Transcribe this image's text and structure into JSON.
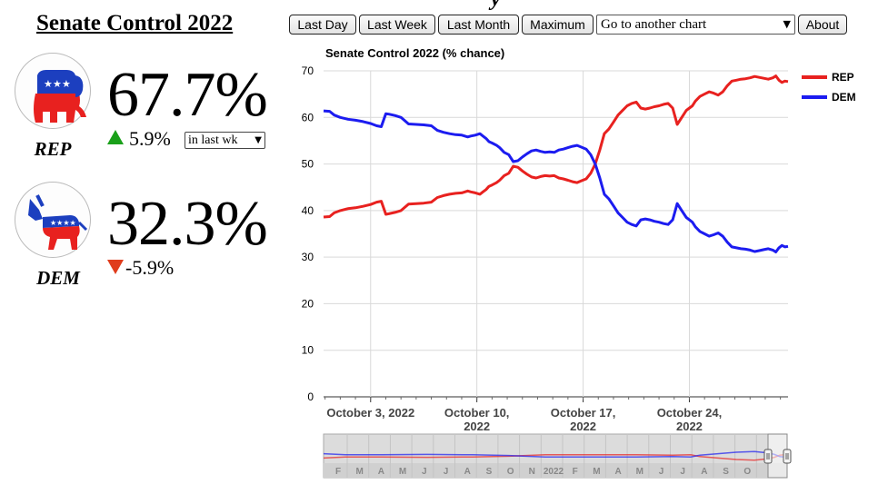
{
  "page": {
    "title": "Senate Control 2022",
    "top_fragment": "y"
  },
  "toolbar": {
    "last_day": "Last Day",
    "last_week": "Last Week",
    "last_month": "Last Month",
    "maximum": "Maximum",
    "select_value": "Go to another chart",
    "about": "About"
  },
  "rep": {
    "label": "REP",
    "percent": "67.7%",
    "change": "5.9%",
    "color": "#e8211f"
  },
  "dem": {
    "label": "DEM",
    "percent": "32.3%",
    "change": "-5.9%",
    "color": "#1c1cf0"
  },
  "range_select": {
    "value": "in last wk"
  },
  "icons": {
    "rep_logo": "republican-elephant-icon",
    "dem_logo": "democrat-donkey-icon",
    "up": "arrow-up-icon",
    "down": "arrow-down-icon",
    "chevron": "chevron-down-icon"
  },
  "chart_data": {
    "type": "line",
    "title": "Senate Control 2022 (% chance)",
    "xlabel": "",
    "ylabel": "",
    "ylim": [
      0,
      70
    ],
    "yticks": [
      "0",
      "10",
      "20",
      "30",
      "40",
      "50",
      "60",
      "70"
    ],
    "xticks": [
      {
        "lines": [
          "October 3, 2022"
        ],
        "day": 3
      },
      {
        "lines": [
          "October 10,",
          "2022"
        ],
        "day": 10
      },
      {
        "lines": [
          "October 17,",
          "2022"
        ],
        "day": 17
      },
      {
        "lines": [
          "October 24,",
          "2022"
        ],
        "day": 24
      }
    ],
    "grid": true,
    "legend_position": "top-right",
    "x_days": [
      -0.1,
      0.3,
      0.6,
      1.0,
      1.5,
      2.0,
      2.5,
      3.0,
      3.4,
      3.7,
      4.0,
      4.2,
      4.6,
      5.0,
      5.5,
      6.0,
      6.5,
      7.0,
      7.4,
      7.8,
      8.2,
      8.6,
      9.0,
      9.4,
      9.6,
      9.9,
      10.2,
      10.4,
      10.6,
      10.8,
      11.0,
      11.3,
      11.5,
      11.8,
      12.1,
      12.4,
      12.7,
      13.0,
      13.3,
      13.6,
      13.9,
      14.2,
      14.5,
      14.8,
      15.1,
      15.4,
      15.7,
      16.0,
      16.3,
      16.6,
      16.9,
      17.2,
      17.5,
      17.8,
      18.1,
      18.4,
      18.7,
      19.0,
      19.3,
      19.6,
      19.9,
      20.2,
      20.5,
      20.8,
      21.1,
      21.4,
      21.7,
      22.0,
      22.3,
      22.6,
      22.9,
      23.2,
      23.5,
      23.8,
      24.0,
      24.2,
      24.4,
      24.7,
      25.0,
      25.3,
      25.6,
      25.9,
      26.2,
      26.5,
      26.8,
      27.1,
      27.4,
      27.7,
      28.0,
      28.3,
      28.6,
      28.9,
      29.2,
      29.5,
      29.7,
      29.9,
      30.1,
      30.3,
      30.5
    ],
    "series": [
      {
        "name": "REP",
        "color": "#e8211f",
        "values": [
          38.6,
          38.7,
          39.5,
          40.0,
          40.4,
          40.6,
          40.9,
          41.3,
          41.8,
          42.0,
          39.2,
          39.3,
          39.6,
          40.0,
          41.4,
          41.5,
          41.6,
          41.8,
          42.8,
          43.2,
          43.5,
          43.7,
          43.8,
          44.2,
          44.0,
          43.8,
          43.5,
          44.0,
          44.5,
          45.2,
          45.5,
          46.0,
          46.5,
          47.5,
          48.0,
          49.5,
          49.3,
          48.5,
          47.8,
          47.2,
          47.0,
          47.3,
          47.5,
          47.4,
          47.5,
          47.0,
          46.8,
          46.5,
          46.2,
          46.0,
          46.4,
          46.8,
          48.0,
          50.0,
          53.0,
          56.5,
          57.5,
          59.0,
          60.5,
          61.5,
          62.5,
          63.0,
          63.3,
          62.0,
          61.8,
          62.0,
          62.3,
          62.5,
          62.8,
          63.0,
          62.0,
          58.5,
          60.0,
          61.5,
          62.0,
          62.5,
          63.5,
          64.5,
          65.0,
          65.5,
          65.2,
          64.8,
          65.5,
          66.8,
          67.8,
          68.0,
          68.2,
          68.3,
          68.5,
          68.8,
          68.6,
          68.4,
          68.2,
          68.5,
          68.9,
          68.0,
          67.5,
          67.8,
          67.7
        ]
      },
      {
        "name": "DEM",
        "color": "#1c1cf0",
        "values": [
          61.4,
          61.3,
          60.5,
          60.0,
          59.6,
          59.4,
          59.1,
          58.7,
          58.2,
          58.0,
          60.8,
          60.7,
          60.4,
          60.0,
          58.6,
          58.5,
          58.4,
          58.2,
          57.2,
          56.8,
          56.5,
          56.3,
          56.2,
          55.8,
          56.0,
          56.2,
          56.5,
          56.0,
          55.5,
          54.8,
          54.5,
          54.0,
          53.5,
          52.5,
          52.0,
          50.5,
          50.7,
          51.5,
          52.2,
          52.8,
          53.0,
          52.7,
          52.5,
          52.6,
          52.5,
          53.0,
          53.2,
          53.5,
          53.8,
          54.0,
          53.6,
          53.2,
          52.0,
          50.0,
          47.0,
          43.5,
          42.5,
          41.0,
          39.5,
          38.5,
          37.5,
          37.0,
          36.7,
          38.0,
          38.2,
          38.0,
          37.7,
          37.5,
          37.2,
          37.0,
          38.0,
          41.5,
          40.0,
          38.5,
          38.0,
          37.5,
          36.5,
          35.5,
          35.0,
          34.5,
          34.8,
          35.2,
          34.5,
          33.2,
          32.2,
          32.0,
          31.8,
          31.7,
          31.5,
          31.2,
          31.4,
          31.6,
          31.8,
          31.5,
          31.1,
          32.0,
          32.5,
          32.2,
          32.3
        ]
      }
    ],
    "navigator": {
      "month_labels": [
        "F",
        "M",
        "A",
        "M",
        "J",
        "J",
        "A",
        "S",
        "O",
        "N",
        "2022",
        "F",
        "M",
        "A",
        "M",
        "J",
        "J",
        "A",
        "S",
        "O"
      ]
    }
  }
}
